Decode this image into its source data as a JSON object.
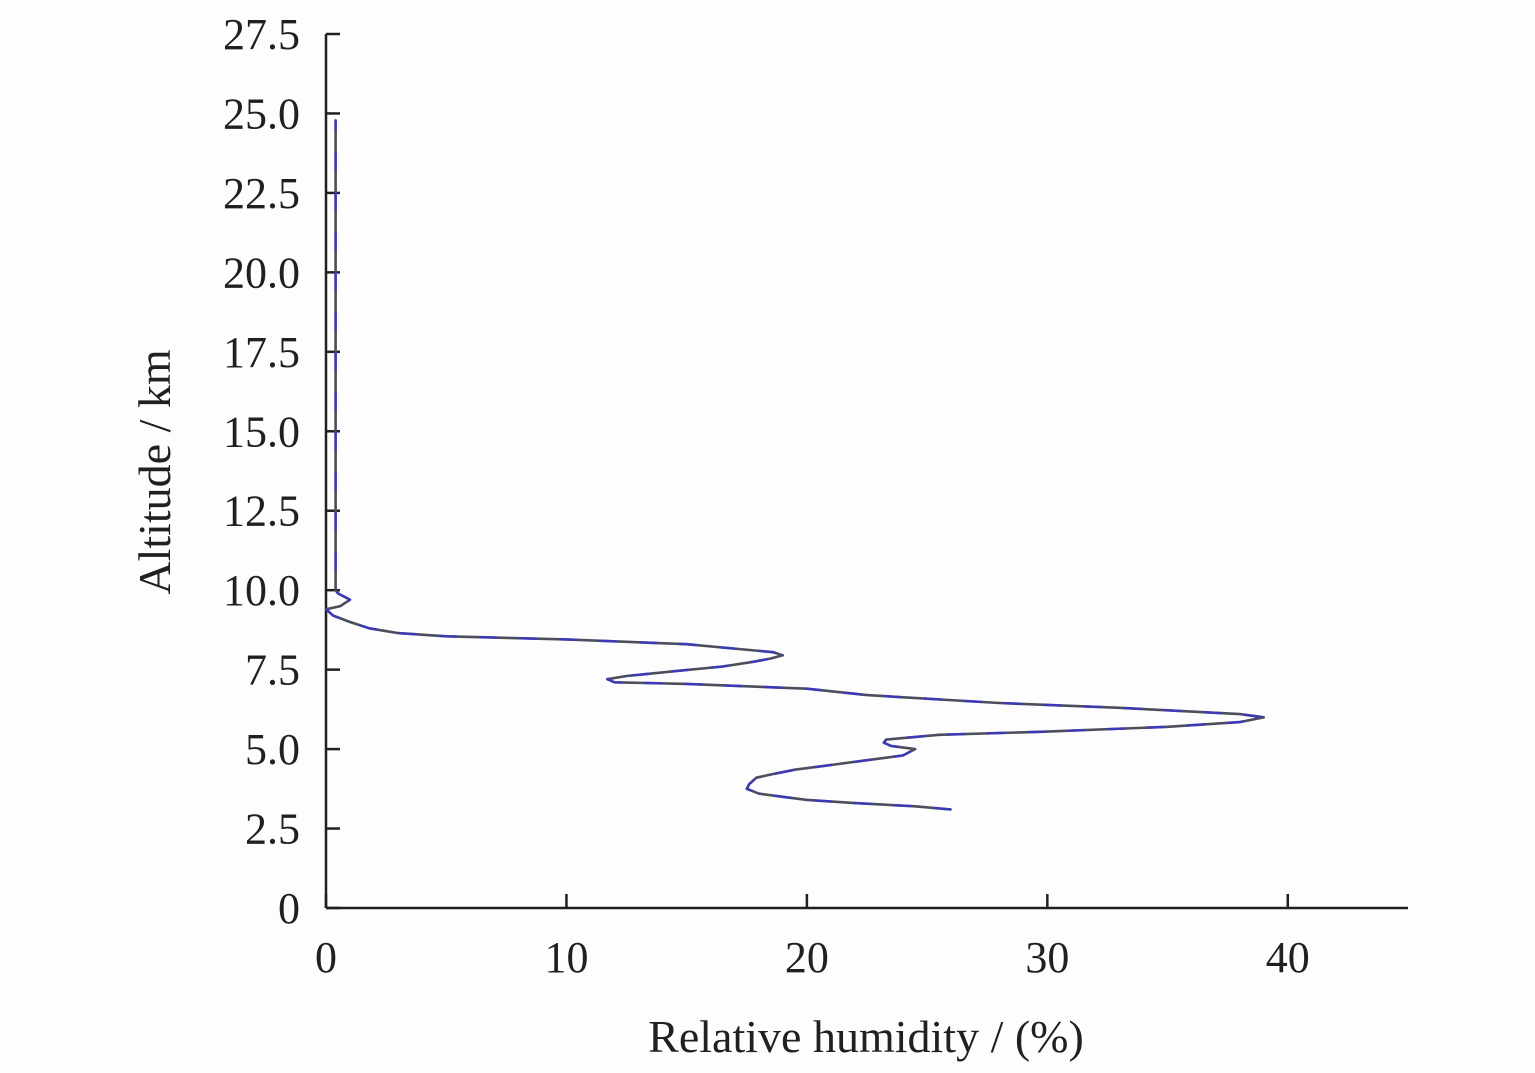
{
  "chart_data": {
    "type": "line",
    "xlabel": "Relative humidity / (%)",
    "ylabel": "Altitude / km",
    "xlim": [
      0,
      45
    ],
    "ylim": [
      0,
      27.5
    ],
    "x_ticks": [
      0,
      10,
      20,
      30,
      40
    ],
    "x_tick_labels": [
      "0",
      "10",
      "20",
      "30",
      "40"
    ],
    "y_ticks": [
      0,
      2.5,
      5.0,
      7.5,
      10.0,
      12.5,
      15.0,
      17.5,
      20.0,
      22.5,
      25.0,
      27.5
    ],
    "y_tick_labels": [
      "0",
      "2.5",
      "5.0",
      "7.5",
      "10.0",
      "12.5",
      "15.0",
      "17.5",
      "20.0",
      "22.5",
      "25.0",
      "27.5"
    ],
    "grid": false,
    "colors": {
      "profile_dark": "#4d4d5c",
      "profile_blue": "#3a3ab8",
      "axis": "#231f20"
    },
    "series": [
      {
        "x": [
          26.0,
          24.5,
          22.0,
          20.0,
          19.0,
          18.0,
          17.5,
          17.6,
          17.9,
          18.5,
          19.5,
          21.0,
          22.5,
          24.0,
          24.5,
          23.5,
          23.2,
          23.3,
          25.5,
          30.0,
          35.0,
          38.0,
          39.0,
          38.0,
          33.0,
          28.0,
          22.5,
          20.0,
          15.0,
          12.0,
          11.7,
          12.5,
          14.5,
          16.5,
          17.8,
          18.5,
          19.0,
          18.6,
          15.0,
          10.0,
          5.0,
          3.0,
          1.8,
          1.0,
          0.3,
          0.0,
          0.6,
          1.0,
          0.5,
          0.4,
          0.4,
          0.4
        ],
        "y": [
          3.1,
          3.2,
          3.3,
          3.4,
          3.5,
          3.6,
          3.75,
          3.9,
          4.1,
          4.2,
          4.35,
          4.5,
          4.65,
          4.8,
          5.0,
          5.1,
          5.2,
          5.3,
          5.45,
          5.55,
          5.7,
          5.85,
          6.0,
          6.1,
          6.3,
          6.45,
          6.7,
          6.9,
          7.05,
          7.1,
          7.2,
          7.3,
          7.45,
          7.6,
          7.75,
          7.85,
          7.95,
          8.05,
          8.3,
          8.45,
          8.55,
          8.65,
          8.8,
          9.0,
          9.2,
          9.4,
          9.5,
          9.7,
          9.9,
          10.0,
          15.0,
          24.8
        ]
      }
    ]
  }
}
